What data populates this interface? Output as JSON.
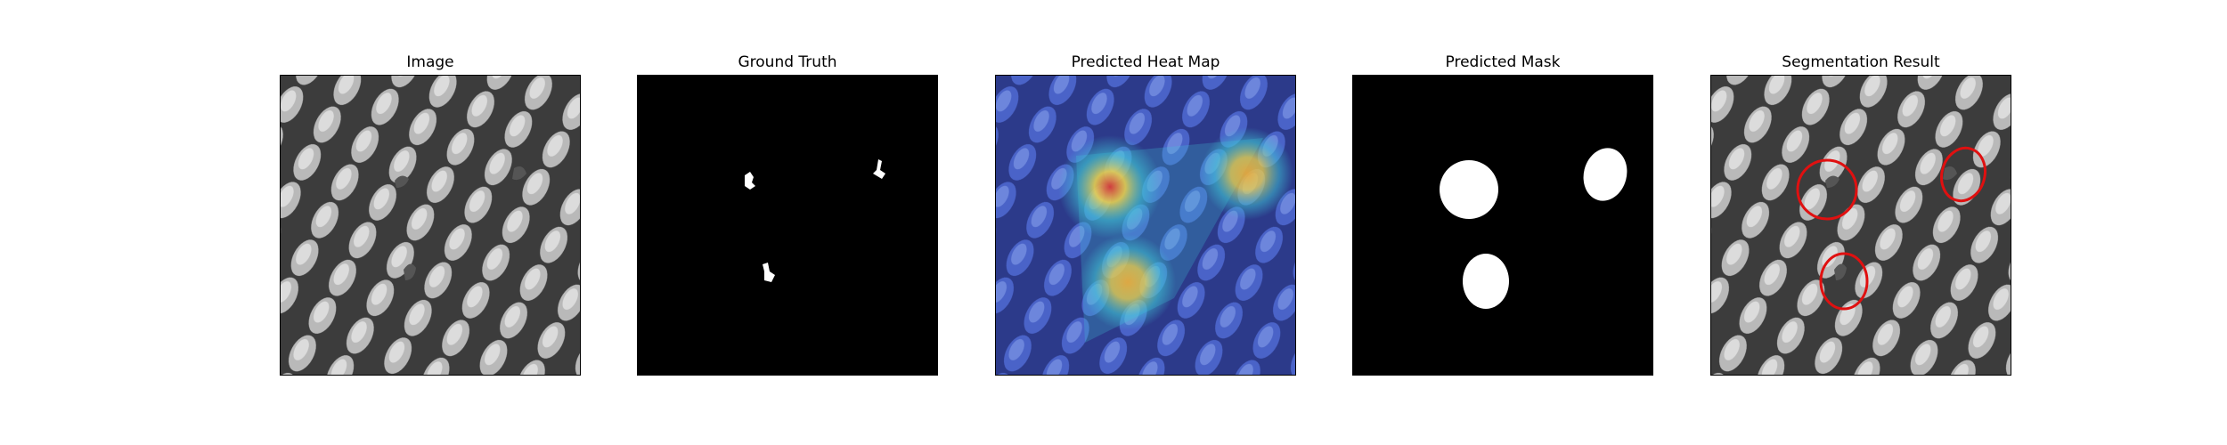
{
  "figure": {
    "panels": [
      {
        "title": "Image"
      },
      {
        "title": "Ground Truth"
      },
      {
        "title": "Predicted Heat Map"
      },
      {
        "title": "Predicted Mask"
      },
      {
        "title": "Segmentation Result"
      }
    ]
  },
  "colors": {
    "mesh_dark": "#3a3a3a",
    "mesh_light": "#c8c8c8",
    "mask_background": "#000000",
    "mask_foreground": "#ffffff",
    "heat_low": "#2a3fb8",
    "heat_mid": "#3fc7d6",
    "heat_high": "#f0d24a",
    "heat_peak": "#d83a3a",
    "contour": "#e01010"
  }
}
